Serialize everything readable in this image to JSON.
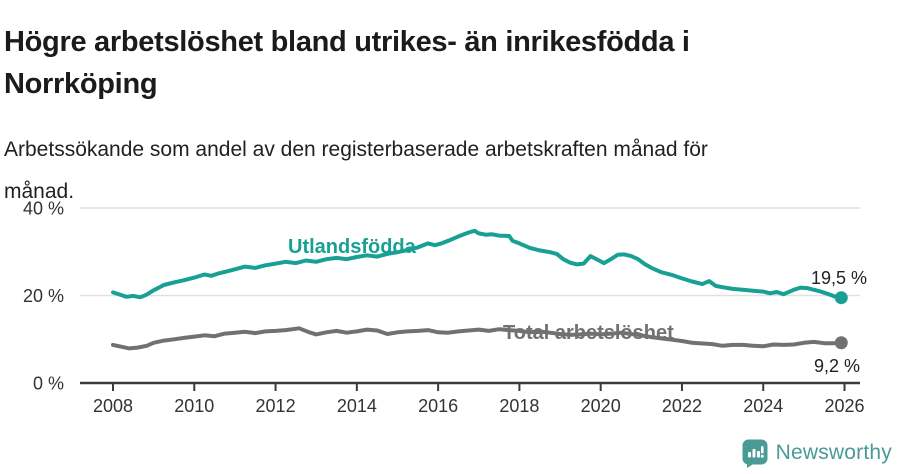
{
  "header": {
    "title_lines": [
      "Högre arbetslöshet bland utrikes- än inrikesfödda i",
      "Norrköping"
    ],
    "subtitle_lines": [
      "Arbetssökande som andel av den registerbaserade arbetskraften månad för",
      "månad."
    ]
  },
  "chart_data": {
    "type": "line",
    "title": "Högre arbetslöshet bland utrikes- än inrikesfödda i Norrköping",
    "subtitle": "Arbetssökande som andel av den registerbaserade arbetskraften månad för månad.",
    "grid": "horizontal",
    "legend_position": "inline-labels",
    "x_axis": {
      "range": [
        2007.2,
        2026.4
      ],
      "ticks": [
        {
          "value": 2008,
          "label": "2008"
        },
        {
          "value": 2010,
          "label": "2010"
        },
        {
          "value": 2012,
          "label": "2012"
        },
        {
          "value": 2014,
          "label": "2014"
        },
        {
          "value": 2016,
          "label": "2016"
        },
        {
          "value": 2018,
          "label": "2018"
        },
        {
          "value": 2020,
          "label": "2020"
        },
        {
          "value": 2022,
          "label": "2022"
        },
        {
          "value": 2024,
          "label": "2024"
        },
        {
          "value": 2026,
          "label": "2026"
        }
      ]
    },
    "y_axis": {
      "range": [
        0,
        44
      ],
      "ticks": [
        {
          "value": 0,
          "label": "0 %"
        },
        {
          "value": 20,
          "label": "20 %"
        },
        {
          "value": 40,
          "label": "40 %"
        }
      ]
    },
    "colors": {
      "utlandsfodda": "#18A094",
      "total": "#717171",
      "axis": "#3A3A3A",
      "grid": "#E1E1E1",
      "text": "#333333",
      "value_label": "#222222"
    },
    "series": [
      {
        "name": "Utlandsfödda",
        "color": "#18A094",
        "end_label": "19,5 %",
        "end_value": 19.5,
        "points": [
          [
            2008.0,
            20.7
          ],
          [
            2008.17,
            20.2
          ],
          [
            2008.33,
            19.7
          ],
          [
            2008.5,
            19.9
          ],
          [
            2008.67,
            19.6
          ],
          [
            2008.83,
            20.2
          ],
          [
            2009.0,
            21.2
          ],
          [
            2009.25,
            22.4
          ],
          [
            2009.5,
            23.0
          ],
          [
            2009.75,
            23.5
          ],
          [
            2010.0,
            24.1
          ],
          [
            2010.25,
            24.8
          ],
          [
            2010.42,
            24.5
          ],
          [
            2010.58,
            25.0
          ],
          [
            2010.75,
            25.4
          ],
          [
            2011.0,
            26.0
          ],
          [
            2011.25,
            26.6
          ],
          [
            2011.5,
            26.3
          ],
          [
            2011.75,
            26.9
          ],
          [
            2012.0,
            27.3
          ],
          [
            2012.25,
            27.7
          ],
          [
            2012.5,
            27.4
          ],
          [
            2012.75,
            28.0
          ],
          [
            2013.0,
            27.7
          ],
          [
            2013.25,
            28.3
          ],
          [
            2013.5,
            28.6
          ],
          [
            2013.75,
            28.3
          ],
          [
            2014.0,
            28.8
          ],
          [
            2014.25,
            29.2
          ],
          [
            2014.5,
            28.9
          ],
          [
            2014.75,
            29.5
          ],
          [
            2015.0,
            29.9
          ],
          [
            2015.25,
            30.4
          ],
          [
            2015.5,
            31.0
          ],
          [
            2015.75,
            31.9
          ],
          [
            2015.92,
            31.5
          ],
          [
            2016.08,
            31.9
          ],
          [
            2016.25,
            32.5
          ],
          [
            2016.42,
            33.2
          ],
          [
            2016.58,
            33.8
          ],
          [
            2016.75,
            34.4
          ],
          [
            2016.9,
            34.8
          ],
          [
            2017.0,
            34.2
          ],
          [
            2017.17,
            33.9
          ],
          [
            2017.33,
            34.0
          ],
          [
            2017.5,
            33.7
          ],
          [
            2017.75,
            33.6
          ],
          [
            2017.83,
            32.5
          ],
          [
            2018.0,
            31.9
          ],
          [
            2018.25,
            30.9
          ],
          [
            2018.5,
            30.3
          ],
          [
            2018.75,
            29.9
          ],
          [
            2018.92,
            29.5
          ],
          [
            2019.08,
            28.3
          ],
          [
            2019.25,
            27.5
          ],
          [
            2019.42,
            27.1
          ],
          [
            2019.58,
            27.3
          ],
          [
            2019.75,
            29.0
          ],
          [
            2019.92,
            28.2
          ],
          [
            2020.08,
            27.4
          ],
          [
            2020.25,
            28.3
          ],
          [
            2020.42,
            29.3
          ],
          [
            2020.58,
            29.4
          ],
          [
            2020.75,
            29.0
          ],
          [
            2020.92,
            28.3
          ],
          [
            2021.08,
            27.2
          ],
          [
            2021.25,
            26.3
          ],
          [
            2021.5,
            25.3
          ],
          [
            2021.75,
            24.7
          ],
          [
            2022.0,
            23.9
          ],
          [
            2022.25,
            23.2
          ],
          [
            2022.5,
            22.6
          ],
          [
            2022.67,
            23.3
          ],
          [
            2022.83,
            22.2
          ],
          [
            2023.0,
            21.9
          ],
          [
            2023.25,
            21.5
          ],
          [
            2023.5,
            21.3
          ],
          [
            2023.75,
            21.1
          ],
          [
            2024.0,
            20.9
          ],
          [
            2024.17,
            20.5
          ],
          [
            2024.33,
            20.8
          ],
          [
            2024.5,
            20.3
          ],
          [
            2024.75,
            21.3
          ],
          [
            2024.92,
            21.8
          ],
          [
            2025.08,
            21.7
          ],
          [
            2025.25,
            21.3
          ],
          [
            2025.42,
            20.9
          ],
          [
            2025.58,
            20.4
          ],
          [
            2025.75,
            19.8
          ],
          [
            2025.92,
            19.5
          ]
        ]
      },
      {
        "name": "Total arbetslöshet",
        "color": "#717171",
        "end_label": "9,2 %",
        "end_value": 9.2,
        "points": [
          [
            2008.0,
            8.7
          ],
          [
            2008.2,
            8.3
          ],
          [
            2008.4,
            7.9
          ],
          [
            2008.6,
            8.1
          ],
          [
            2008.83,
            8.5
          ],
          [
            2009.0,
            9.2
          ],
          [
            2009.25,
            9.7
          ],
          [
            2009.5,
            10.0
          ],
          [
            2009.75,
            10.3
          ],
          [
            2010.0,
            10.6
          ],
          [
            2010.25,
            10.9
          ],
          [
            2010.5,
            10.7
          ],
          [
            2010.75,
            11.3
          ],
          [
            2011.0,
            11.5
          ],
          [
            2011.25,
            11.7
          ],
          [
            2011.5,
            11.4
          ],
          [
            2011.75,
            11.8
          ],
          [
            2012.0,
            11.9
          ],
          [
            2012.25,
            12.1
          ],
          [
            2012.58,
            12.5
          ],
          [
            2012.83,
            11.6
          ],
          [
            2013.0,
            11.1
          ],
          [
            2013.25,
            11.6
          ],
          [
            2013.5,
            11.9
          ],
          [
            2013.75,
            11.5
          ],
          [
            2014.0,
            11.8
          ],
          [
            2014.25,
            12.2
          ],
          [
            2014.5,
            12.0
          ],
          [
            2014.75,
            11.2
          ],
          [
            2015.0,
            11.6
          ],
          [
            2015.25,
            11.8
          ],
          [
            2015.5,
            11.9
          ],
          [
            2015.75,
            12.1
          ],
          [
            2016.0,
            11.6
          ],
          [
            2016.25,
            11.5
          ],
          [
            2016.5,
            11.8
          ],
          [
            2016.75,
            12.0
          ],
          [
            2017.0,
            12.2
          ],
          [
            2017.25,
            11.9
          ],
          [
            2017.5,
            12.3
          ],
          [
            2017.75,
            12.1
          ],
          [
            2018.0,
            11.9
          ],
          [
            2018.25,
            11.6
          ],
          [
            2018.5,
            11.8
          ],
          [
            2018.75,
            11.5
          ],
          [
            2019.0,
            11.2
          ],
          [
            2019.25,
            11.0
          ],
          [
            2019.5,
            11.1
          ],
          [
            2019.75,
            11.3
          ],
          [
            2020.0,
            11.1
          ],
          [
            2020.25,
            11.3
          ],
          [
            2020.5,
            11.5
          ],
          [
            2020.75,
            11.2
          ],
          [
            2021.0,
            10.9
          ],
          [
            2021.25,
            10.5
          ],
          [
            2021.5,
            10.2
          ],
          [
            2021.75,
            9.9
          ],
          [
            2022.0,
            9.6
          ],
          [
            2022.25,
            9.2
          ],
          [
            2022.42,
            9.1
          ],
          [
            2022.58,
            9.0
          ],
          [
            2022.75,
            8.9
          ],
          [
            2023.0,
            8.5
          ],
          [
            2023.25,
            8.7
          ],
          [
            2023.5,
            8.7
          ],
          [
            2023.75,
            8.5
          ],
          [
            2024.0,
            8.4
          ],
          [
            2024.25,
            8.8
          ],
          [
            2024.5,
            8.7
          ],
          [
            2024.75,
            8.8
          ],
          [
            2025.0,
            9.2
          ],
          [
            2025.25,
            9.4
          ],
          [
            2025.5,
            9.1
          ],
          [
            2025.75,
            9.1
          ],
          [
            2025.92,
            9.2
          ]
        ]
      }
    ]
  },
  "footer": {
    "brand": "Newsworthy",
    "brand_icon": "bar-chart-speech-bubble-icon",
    "brand_color": "#4A9B96"
  }
}
